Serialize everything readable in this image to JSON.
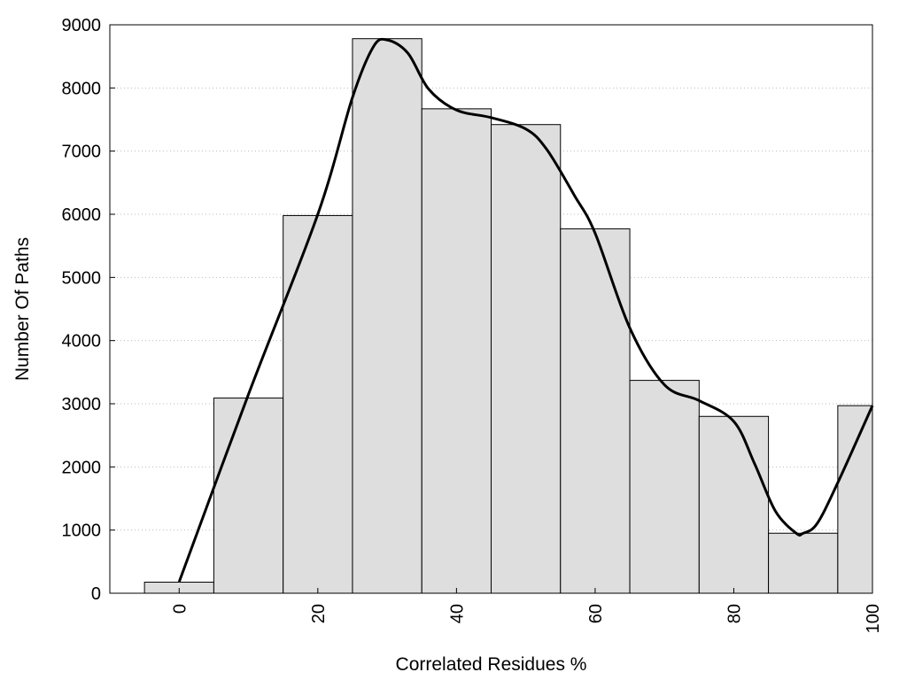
{
  "chart_data": {
    "type": "bar",
    "xlabel": "Correlated Residues %",
    "ylabel": "Number Of Paths",
    "xlim": [
      -10,
      100
    ],
    "ylim": [
      0,
      9000
    ],
    "xticks": [
      "0",
      "20",
      "40",
      "60",
      "80",
      "100"
    ],
    "xtick_values": [
      0,
      20,
      40,
      60,
      80,
      100
    ],
    "yticks": [
      "0",
      "1000",
      "2000",
      "3000",
      "4000",
      "5000",
      "6000",
      "7000",
      "8000",
      "9000"
    ],
    "ytick_values": [
      0,
      1000,
      2000,
      3000,
      4000,
      5000,
      6000,
      7000,
      8000,
      9000
    ],
    "grid": "horizontal-dotted",
    "bar_color": "#dedede",
    "bins": [
      {
        "start": -5,
        "end": 5,
        "value": 175
      },
      {
        "start": 5,
        "end": 15,
        "value": 3090
      },
      {
        "start": 15,
        "end": 25,
        "value": 5980
      },
      {
        "start": 25,
        "end": 35,
        "value": 8780
      },
      {
        "start": 35,
        "end": 45,
        "value": 7670
      },
      {
        "start": 45,
        "end": 55,
        "value": 7420
      },
      {
        "start": 55,
        "end": 65,
        "value": 5770
      },
      {
        "start": 65,
        "end": 75,
        "value": 3370
      },
      {
        "start": 75,
        "end": 85,
        "value": 2800
      },
      {
        "start": 85,
        "end": 95,
        "value": 950
      },
      {
        "start": 95,
        "end": 100,
        "value": 2970
      }
    ],
    "curve": {
      "x": [
        0,
        10,
        20,
        25,
        28,
        30,
        33,
        36,
        40,
        45,
        50,
        53,
        57,
        60,
        65,
        70,
        75,
        80,
        83,
        86,
        89,
        90,
        92,
        95,
        100
      ],
      "y": [
        180,
        3150,
        6000,
        7850,
        8650,
        8760,
        8550,
        7980,
        7650,
        7530,
        7350,
        7030,
        6300,
        5700,
        4200,
        3300,
        3050,
        2720,
        2050,
        1300,
        950,
        950,
        1100,
        1750,
        2970
      ]
    }
  }
}
